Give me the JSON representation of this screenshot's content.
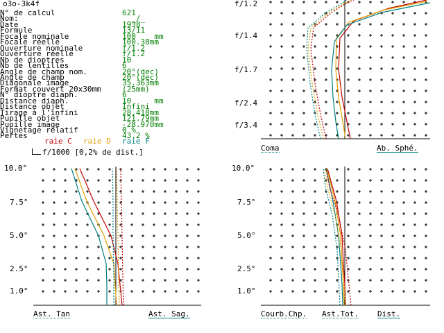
{
  "title": "o3o-3k4f",
  "specs": [
    {
      "label": "N° de calcul",
      "value": "621"
    },
    {
      "label": "Nom:",
      "value": "  _/_"
    },
    {
      "label": "Date",
      "value": "1938"
    },
    {
      "label": "Formule",
      "value": "13/11"
    },
    {
      "label": "Focale nominale",
      "value": "100    mm"
    },
    {
      "label": "Focale réelle",
      "value": "100.38mm"
    },
    {
      "label": "Ouverture nominale",
      "value": "f/1.2"
    },
    {
      "label": "Ouverture réelle",
      "value": "f/1.2"
    },
    {
      "label": "Nb de dioptres",
      "value": "10"
    },
    {
      "label": "Nb de lentilles",
      "value": "6"
    },
    {
      "label": "Angle de champ nom.",
      "value": "20°(dec)"
    },
    {
      "label": "Angle de champ",
      "value": "20°(dec)"
    },
    {
      "label": "Diagonale image",
      "value": "35.363mm"
    },
    {
      "label": "Format couvert 20x30mm",
      "value": "(25mm)"
    },
    {
      "label": "N° dioptre diaph.",
      "value": "6"
    },
    {
      "label": "Distance diaph.",
      "value": "10     mm"
    },
    {
      "label": "Distance objet",
      "value": "Infini"
    },
    {
      "label": "Tirage à l'infini",
      "value": "28.418mm"
    },
    {
      "label": "Pupille objet",
      "value": "121.79mm"
    },
    {
      "label": "Pupille image",
      "value": "-28.970mm"
    },
    {
      "label": "Vignetage relatif",
      "value": "0 %"
    },
    {
      "label": "Pertes",
      "value": "43.2 %"
    }
  ],
  "legend": {
    "raie_c": "raie C",
    "raie_d": "raie D",
    "raie_f": "raie F",
    "scale_note": "f/1000 [0,2% de dist.]",
    "colors": {
      "C": "#c00000",
      "D": "#e0a000",
      "F": "#008080"
    }
  },
  "charts": {
    "aperture": {
      "ticks": [
        "f/1.2",
        "f/1.4",
        "f/1.7",
        "f/2.4",
        "f/3.4"
      ],
      "caption_left": "Coma",
      "caption_right": "Ab. Sphé."
    },
    "astig": {
      "ticks": [
        "10.0°",
        "7.5°",
        "5.0°",
        "2.5°",
        "1.0°"
      ],
      "caption_left": "Ast. Tan",
      "caption_right": "Ast. Sag."
    },
    "field": {
      "ticks": [
        "10.0°",
        "7.5°",
        "5.0°",
        "2.5°",
        "1.0°"
      ],
      "caption_left": "Courb.Chp.",
      "caption_mid": "Ast.Tot.",
      "caption_right": "Dist."
    }
  }
}
